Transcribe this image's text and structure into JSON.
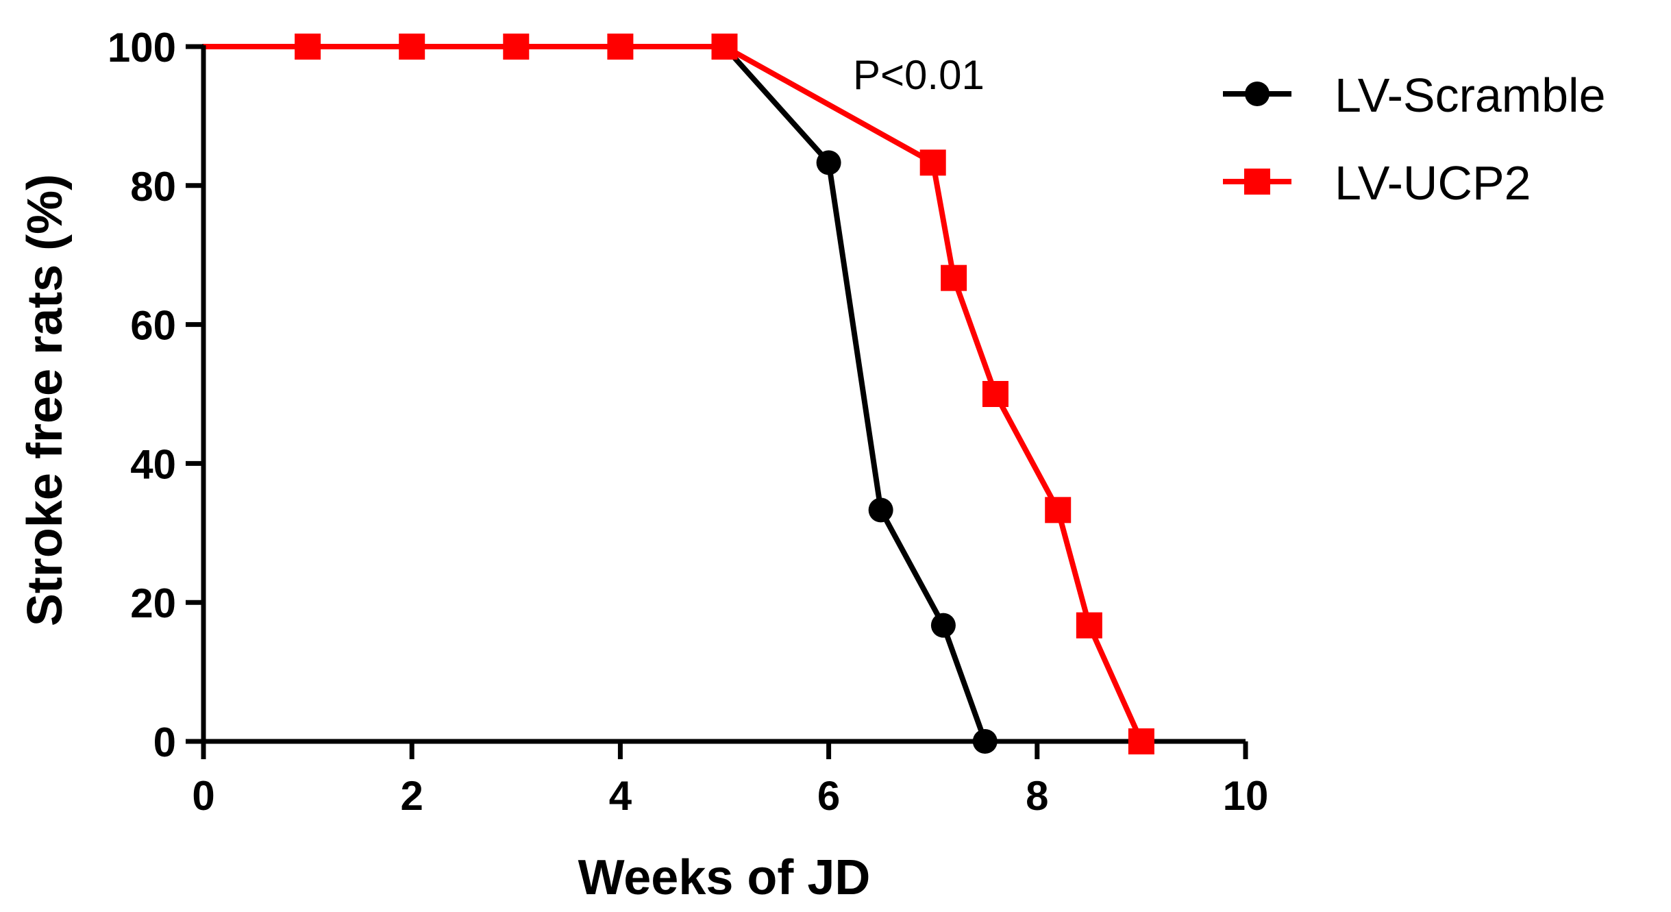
{
  "chart_data": {
    "type": "line",
    "title": "",
    "xlabel": "Weeks of JD",
    "ylabel": "Stroke free rats (%)",
    "xlim": [
      0,
      10
    ],
    "ylim": [
      0,
      100
    ],
    "xticks": [
      0,
      2,
      4,
      6,
      8,
      10
    ],
    "yticks": [
      0,
      20,
      40,
      60,
      80,
      100
    ],
    "grid": false,
    "legend_position": "top-right",
    "annotation": "P<0.01",
    "series": [
      {
        "name": "LV-Scramble",
        "color": "#000000",
        "marker": "circle",
        "x": [
          0,
          1,
          2,
          3,
          4,
          5,
          6,
          6.5,
          7.1,
          7.5
        ],
        "y": [
          100,
          100,
          100,
          100,
          100,
          100,
          83.3,
          33.3,
          16.7,
          0
        ]
      },
      {
        "name": "LV-UCP2",
        "color": "#ff0000",
        "marker": "square",
        "x": [
          0,
          1,
          2,
          3,
          4,
          5,
          7,
          7.2,
          7.6,
          8.2,
          8.5,
          9
        ],
        "y": [
          100,
          100,
          100,
          100,
          100,
          100,
          83.3,
          66.7,
          50,
          33.3,
          16.7,
          0
        ]
      }
    ]
  }
}
